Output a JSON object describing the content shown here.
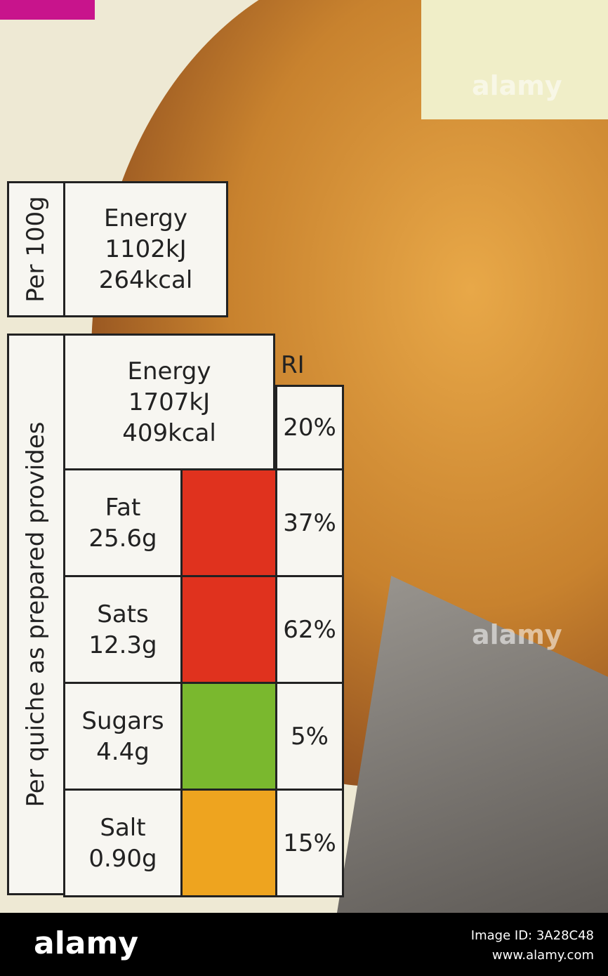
{
  "per_100g": {
    "label": "Per 100g",
    "energy": "Energy",
    "kj": "1102kJ",
    "kcal": "264kcal"
  },
  "per_portion": {
    "label": "Per quiche as prepared provides",
    "energy": "Energy",
    "kj": "1707kJ",
    "kcal": "409kcal",
    "ri_header": "RI",
    "energy_ri": "20%",
    "rows": [
      {
        "name": "Fat",
        "amount": "25.6g",
        "ri": "37%",
        "color": "#e0321e"
      },
      {
        "name": "Sats",
        "amount": "12.3g",
        "ri": "62%",
        "color": "#e0321e"
      },
      {
        "name": "Sugars",
        "amount": "4.4g",
        "ri": "5%",
        "color": "#7ab82e"
      },
      {
        "name": "Salt",
        "amount": "0.90g",
        "ri": "15%",
        "color": "#eea41f"
      }
    ]
  },
  "watermark": "alamy",
  "footer": {
    "logo": "alamy",
    "image_id": "Image ID: 3A28C48",
    "url": "www.alamy.com"
  }
}
